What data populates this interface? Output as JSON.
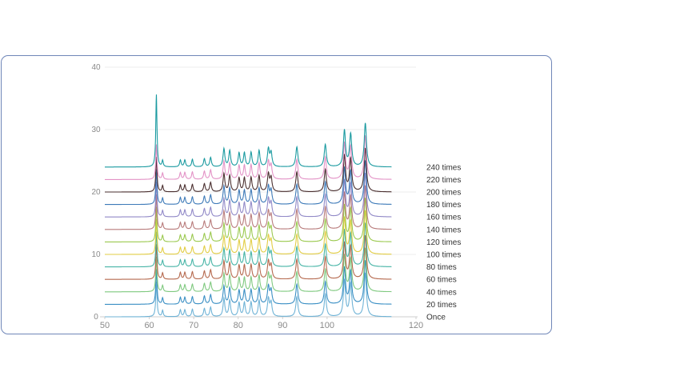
{
  "chart_data": {
    "type": "line",
    "title": "",
    "xlabel": "",
    "ylabel": "",
    "xlim": [
      50,
      120
    ],
    "ylim": [
      0,
      40
    ],
    "x_ticks": [
      "50",
      "60",
      "70",
      "80",
      "90",
      "100",
      "120"
    ],
    "y_ticks": [
      "0",
      "10",
      "20",
      "30",
      "40"
    ],
    "grid": "horizontal",
    "legend": "right-side labels",
    "peaks": [
      {
        "x": 61.6,
        "h": 5.6,
        "w": 0.17
      },
      {
        "x": 63.0,
        "h": 1.0,
        "w": 0.17
      },
      {
        "x": 67.0,
        "h": 1.1,
        "w": 0.2
      },
      {
        "x": 68.0,
        "h": 1.1,
        "w": 0.2
      },
      {
        "x": 69.7,
        "h": 1.2,
        "w": 0.2
      },
      {
        "x": 72.4,
        "h": 1.3,
        "w": 0.22
      },
      {
        "x": 73.8,
        "h": 1.5,
        "w": 0.22
      },
      {
        "x": 76.8,
        "h": 2.9,
        "w": 0.24
      },
      {
        "x": 78.1,
        "h": 2.6,
        "w": 0.24
      },
      {
        "x": 80.2,
        "h": 2.2,
        "w": 0.24
      },
      {
        "x": 81.4,
        "h": 2.2,
        "w": 0.24
      },
      {
        "x": 82.9,
        "h": 2.3,
        "w": 0.24
      },
      {
        "x": 84.7,
        "h": 2.6,
        "w": 0.24
      },
      {
        "x": 86.8,
        "h": 2.8,
        "w": 0.26
      },
      {
        "x": 87.4,
        "h": 2.2,
        "w": 0.26
      },
      {
        "x": 93.2,
        "h": 3.2,
        "w": 0.28
      },
      {
        "x": 99.6,
        "h": 3.6,
        "w": 0.28
      },
      {
        "x": 103.9,
        "h": 5.8,
        "w": 0.28
      },
      {
        "x": 105.3,
        "h": 5.2,
        "w": 0.3
      },
      {
        "x": 108.6,
        "h": 7.0,
        "w": 0.3
      }
    ],
    "series": [
      {
        "name": "Once",
        "offset": 0,
        "color": "#6fb3d6"
      },
      {
        "name": "20 times",
        "offset": 2,
        "color": "#3a8fc4"
      },
      {
        "name": "40 times",
        "offset": 4,
        "color": "#7fc97f"
      },
      {
        "name": "60 times",
        "offset": 6,
        "color": "#b5694e"
      },
      {
        "name": "80 times",
        "offset": 8,
        "color": "#46b4a6"
      },
      {
        "name": "100 times",
        "offset": 10,
        "color": "#e2cd44"
      },
      {
        "name": "120 times",
        "offset": 12,
        "color": "#9bc94f"
      },
      {
        "name": "140 times",
        "offset": 14,
        "color": "#b87b7b"
      },
      {
        "name": "160 times",
        "offset": 16,
        "color": "#9189c7"
      },
      {
        "name": "180 times",
        "offset": 18,
        "color": "#3d7ab8"
      },
      {
        "name": "200 times",
        "offset": 20,
        "color": "#4a2f2f"
      },
      {
        "name": "220 times",
        "offset": 22,
        "color": "#e392c6"
      },
      {
        "name": "240 times",
        "offset": 24,
        "color": "#1a9aa0"
      }
    ]
  }
}
